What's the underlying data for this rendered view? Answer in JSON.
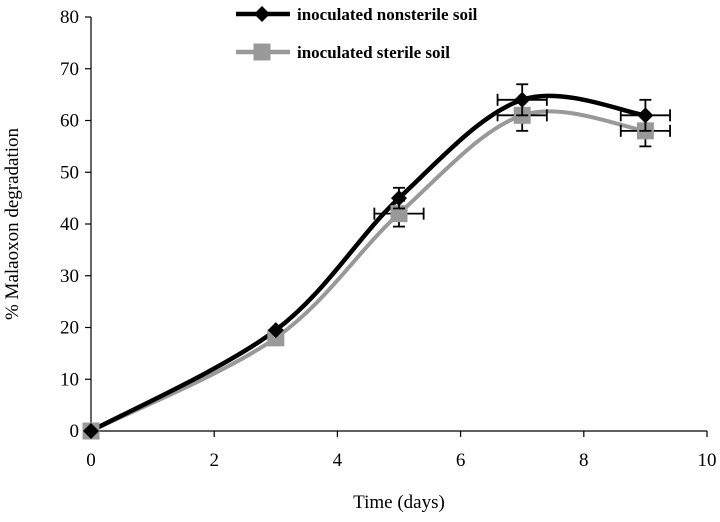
{
  "chart_data": {
    "type": "line",
    "title": "",
    "xlabel": "Time (days)",
    "ylabel": "% Malaoxon degradation",
    "xlim": [
      0,
      10
    ],
    "ylim": [
      0,
      80
    ],
    "xticks": [
      0,
      2,
      4,
      6,
      8,
      10
    ],
    "yticks": [
      0,
      10,
      20,
      30,
      40,
      50,
      60,
      70,
      80
    ],
    "grid": false,
    "legend_position": "top-center",
    "series": [
      {
        "name": "inoculated nonsterile soil",
        "color": "#000000",
        "marker": "diamond",
        "x": [
          0,
          3,
          5,
          7,
          9
        ],
        "y": [
          0,
          19.5,
          45,
          64,
          61
        ],
        "yerr": [
          0,
          0,
          2,
          3,
          3
        ],
        "xerr": [
          0,
          0,
          0,
          0.4,
          0.4
        ]
      },
      {
        "name": "inoculated sterile soil",
        "color": "#999999",
        "marker": "square",
        "x": [
          0,
          3,
          5,
          7,
          9
        ],
        "y": [
          0,
          18,
          42,
          61,
          58
        ],
        "yerr": [
          0,
          0,
          2.5,
          3,
          3
        ],
        "xerr": [
          0,
          0,
          0.4,
          0.4,
          0.4
        ]
      }
    ]
  }
}
